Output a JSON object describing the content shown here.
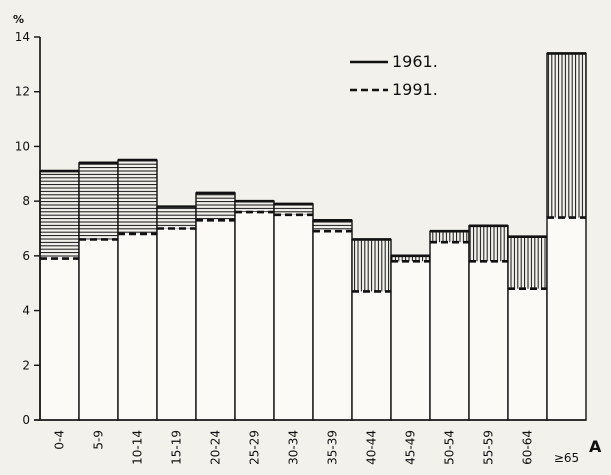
{
  "chart_data": {
    "type": "bar",
    "title": "",
    "ylabel": "%",
    "xlabel": "A",
    "ylim": [
      0,
      14
    ],
    "yticks": [
      0,
      2,
      4,
      6,
      8,
      10,
      12,
      14
    ],
    "grid": false,
    "legend_position": "top-right",
    "categories": [
      "0-4",
      "5-9",
      "10-14",
      "15-19",
      "20-24",
      "25-29",
      "30-34",
      "35-39",
      "40-44",
      "45-49",
      "50-54",
      "55-59",
      "60-64",
      "≥65"
    ],
    "series": [
      {
        "name": "1961.",
        "style": "solid",
        "values": [
          9.1,
          9.4,
          9.5,
          7.8,
          8.3,
          8.0,
          7.9,
          7.3,
          6.6,
          6.0,
          6.9,
          7.1,
          6.7,
          13.4
        ]
      },
      {
        "name": "1991.",
        "style": "dashed",
        "values": [
          5.9,
          6.6,
          6.8,
          7.0,
          7.3,
          7.6,
          7.5,
          6.9,
          4.7,
          5.8,
          6.5,
          5.8,
          4.8,
          7.4
        ]
      }
    ],
    "colors": {
      "ink": "#111111",
      "paper": "#f3f1ec"
    }
  }
}
